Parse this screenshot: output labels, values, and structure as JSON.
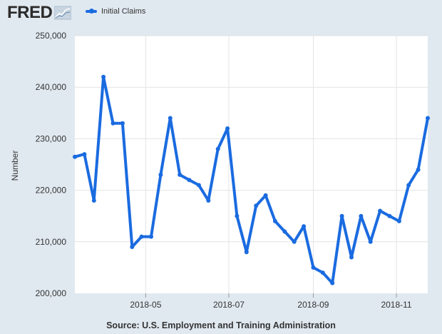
{
  "header": {
    "logo_text": "FRED",
    "legend_label": "Initial Claims"
  },
  "source_text": "Source: U.S. Employment and Training Administration",
  "colors": {
    "background": "#e1e9f0",
    "plot_background": "#ffffff",
    "series": "#1a6be0",
    "gridline": "#e4e4e4"
  },
  "chart_data": {
    "type": "line",
    "ylabel": "Number",
    "ylim": [
      200000,
      250000
    ],
    "yticks": [
      200000,
      210000,
      220000,
      230000,
      240000,
      250000
    ],
    "ytick_labels": [
      "200,000",
      "210,000",
      "220,000",
      "230,000",
      "240,000",
      "250,000"
    ],
    "xlim": [
      "2018-03-10",
      "2018-11-24"
    ],
    "xticks": [
      "2018-05-01",
      "2018-07-01",
      "2018-09-01",
      "2018-11-01"
    ],
    "xtick_labels": [
      "2018-05",
      "2018-07",
      "2018-09",
      "2018-11"
    ],
    "grid": true,
    "legend_position": "top-left",
    "series": [
      {
        "name": "Initial Claims",
        "x": [
          "2018-03-10",
          "2018-03-17",
          "2018-03-24",
          "2018-03-31",
          "2018-04-07",
          "2018-04-14",
          "2018-04-21",
          "2018-04-28",
          "2018-05-05",
          "2018-05-12",
          "2018-05-19",
          "2018-05-26",
          "2018-06-02",
          "2018-06-09",
          "2018-06-16",
          "2018-06-23",
          "2018-06-30",
          "2018-07-07",
          "2018-07-14",
          "2018-07-21",
          "2018-07-28",
          "2018-08-04",
          "2018-08-11",
          "2018-08-18",
          "2018-08-25",
          "2018-09-01",
          "2018-09-08",
          "2018-09-15",
          "2018-09-22",
          "2018-09-29",
          "2018-10-06",
          "2018-10-13",
          "2018-10-20",
          "2018-10-27",
          "2018-11-03",
          "2018-11-10",
          "2018-11-17",
          "2018-11-24"
        ],
        "y": [
          226500,
          227000,
          218000,
          242000,
          233000,
          233000,
          209000,
          211000,
          211000,
          223000,
          234000,
          223000,
          222000,
          221000,
          218000,
          228000,
          232000,
          215000,
          208000,
          217000,
          219000,
          214000,
          212000,
          210000,
          213000,
          205000,
          204000,
          202000,
          215000,
          207000,
          215000,
          210000,
          216000,
          215000,
          214000,
          221000,
          224000,
          234000
        ]
      }
    ]
  }
}
